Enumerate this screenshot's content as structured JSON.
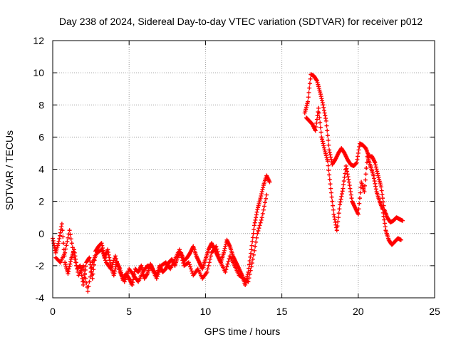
{
  "chart_data": {
    "type": "scatter",
    "title": "Day 238 of 2024, Sidereal Day-to-day VTEC variation (SDTVAR) for receiver p012",
    "xlabel": "GPS time / hours",
    "ylabel": "SDTVAR / TECUs",
    "xlim": [
      0,
      25
    ],
    "ylim": [
      -4,
      12
    ],
    "xticks": [
      0,
      5,
      10,
      15,
      20,
      25
    ],
    "yticks": [
      -4,
      -2,
      0,
      2,
      4,
      6,
      8,
      10,
      12
    ],
    "grid": true,
    "marker": "+",
    "colors": {
      "series": "#ff0000",
      "grid": "#a0a0a0",
      "axes": "#000000"
    },
    "series": [
      {
        "name": "SDTVAR",
        "segments": [
          {
            "x": [
              0.0,
              0.2,
              0.4,
              0.6,
              0.8,
              1.0,
              1.2,
              1.4,
              1.6,
              1.8,
              2.0,
              2.2,
              2.4,
              2.6,
              2.8,
              3.0,
              3.2,
              3.4,
              3.6,
              3.8,
              4.0,
              4.2,
              4.4,
              4.6,
              4.8,
              5.0,
              5.2,
              5.4,
              5.6,
              5.8,
              6.0,
              6.2,
              6.4,
              6.6,
              6.8,
              7.0,
              7.2,
              7.4,
              7.6,
              7.8,
              8.0,
              8.2,
              8.4,
              8.6,
              8.8,
              9.0,
              9.2,
              9.4,
              9.6,
              9.8,
              10.0,
              10.2,
              10.4,
              10.6,
              10.8,
              11.0,
              11.2,
              11.4,
              11.6,
              11.8,
              12.0,
              12.2,
              12.4,
              12.6,
              12.8,
              13.0,
              13.2,
              13.4,
              13.6,
              13.8,
              14.0,
              14.2
            ],
            "y": [
              -0.3,
              -1.2,
              -0.5,
              0.6,
              -1.8,
              -2.5,
              -1.6,
              -1.0,
              -2.2,
              -2.0,
              -3.2,
              -1.8,
              -1.5,
              -2.8,
              -1.1,
              -0.8,
              -0.6,
              -1.5,
              -1.0,
              -2.0,
              -2.6,
              -1.8,
              -2.2,
              -2.9,
              -2.5,
              -2.8,
              -3.2,
              -2.2,
              -2.4,
              -2.0,
              -2.8,
              -2.5,
              -1.9,
              -2.3,
              -2.6,
              -2.0,
              -2.4,
              -2.2,
              -1.8,
              -1.6,
              -2.0,
              -1.4,
              -1.2,
              -1.7,
              -1.5,
              -1.2,
              -0.8,
              -1.4,
              -1.8,
              -2.2,
              -1.6,
              -1.0,
              -0.6,
              -1.0,
              -1.4,
              -1.8,
              -1.2,
              -0.4,
              -0.8,
              -1.4,
              -1.8,
              -2.2,
              -2.6,
              -3.2,
              -2.4,
              -1.0,
              0.5,
              1.5,
              2.2,
              3.0,
              3.6,
              3.2
            ]
          },
          {
            "x": [
              0.2,
              0.5,
              0.8,
              1.1,
              1.4,
              1.7,
              2.0,
              2.3,
              2.6,
              2.9,
              3.2,
              3.5,
              3.8,
              4.1,
              4.4,
              4.7,
              5.0,
              5.3,
              5.6,
              5.9,
              6.2,
              6.5,
              6.8,
              7.1,
              7.4,
              7.7,
              8.0,
              8.3,
              8.6,
              8.9,
              9.2,
              9.5,
              9.8,
              10.1,
              10.4,
              10.7,
              11.0,
              11.3,
              11.6,
              11.9,
              12.2,
              12.5,
              12.8,
              13.1,
              13.4,
              13.7,
              14.0
            ],
            "y": [
              -1.5,
              -1.8,
              -1.2,
              0.2,
              -1.4,
              -2.6,
              -2.0,
              -3.6,
              -1.8,
              -1.2,
              -1.0,
              -1.8,
              -2.2,
              -1.4,
              -2.4,
              -3.0,
              -2.2,
              -2.6,
              -3.0,
              -2.4,
              -2.0,
              -2.2,
              -2.8,
              -2.0,
              -1.8,
              -2.2,
              -1.6,
              -1.0,
              -2.0,
              -1.8,
              -2.6,
              -2.2,
              -2.8,
              -2.4,
              -1.2,
              -0.8,
              -1.8,
              -2.4,
              -1.4,
              -2.0,
              -2.6,
              -2.8,
              -3.0,
              -1.6,
              0.0,
              1.0,
              2.4
            ]
          },
          {
            "x": [
              16.5,
              16.7,
              16.9,
              17.1,
              17.3,
              17.5,
              17.7,
              17.9,
              18.1,
              18.3,
              18.5,
              18.7,
              18.9,
              19.1,
              19.3,
              19.5,
              19.7,
              19.9,
              20.1,
              20.3,
              20.5,
              20.7,
              20.9,
              21.1,
              21.3,
              21.5,
              21.7,
              21.9,
              22.1,
              22.3,
              22.5,
              22.7,
              22.9
            ],
            "y": [
              7.5,
              8.2,
              9.9,
              9.8,
              9.5,
              8.8,
              8.0,
              7.0,
              5.2,
              4.3,
              4.6,
              5.0,
              5.3,
              5.0,
              4.6,
              4.3,
              4.2,
              4.4,
              5.6,
              5.5,
              5.3,
              4.8,
              4.8,
              4.4,
              3.6,
              2.9,
              1.5,
              1.0,
              0.7,
              0.8,
              1.0,
              0.9,
              0.8
            ]
          },
          {
            "x": [
              16.6,
              16.8,
              17.0,
              17.2,
              17.4,
              17.6,
              17.8,
              18.0,
              18.2,
              18.4,
              18.6,
              18.8,
              19.0,
              19.2,
              19.4,
              19.6,
              19.8,
              20.0,
              20.2,
              20.4,
              20.6,
              20.8,
              21.0,
              21.2,
              21.4,
              21.6,
              21.8,
              22.0,
              22.2,
              22.4,
              22.6,
              22.8
            ],
            "y": [
              7.2,
              7.0,
              6.8,
              6.4,
              7.8,
              6.0,
              5.2,
              4.5,
              2.8,
              1.2,
              0.2,
              1.8,
              2.8,
              4.2,
              3.2,
              2.0,
              1.6,
              1.2,
              3.2,
              2.6,
              4.8,
              4.2,
              3.6,
              2.6,
              2.0,
              1.5,
              0.2,
              -0.4,
              -0.7,
              -0.5,
              -0.3,
              -0.4
            ]
          }
        ]
      }
    ]
  }
}
